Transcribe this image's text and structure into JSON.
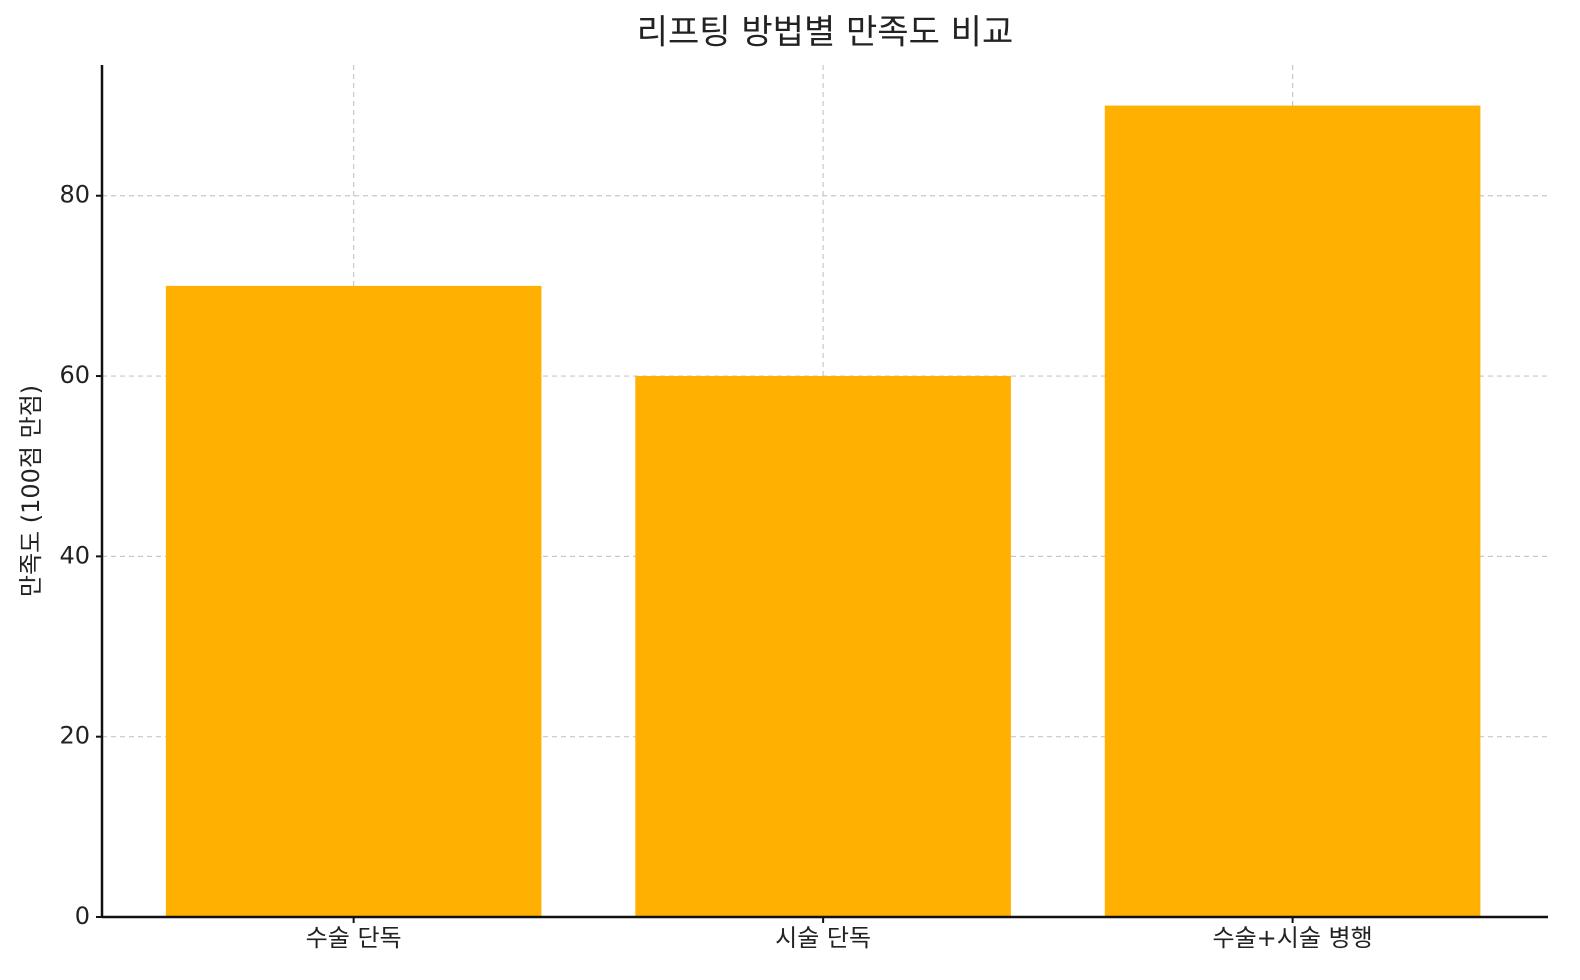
{
  "chart_data": {
    "type": "bar",
    "title": "리프팅 방법별 만족도 비교",
    "y_label": "만족도 (100점 만점)",
    "categories": [
      "수술 단독",
      "시술 단독",
      "수술+시술 병행"
    ],
    "values": [
      70,
      60,
      90
    ],
    "color": "#ffb000",
    "ylim": [
      0,
      94.5
    ],
    "yticks": [
      0,
      20,
      40,
      60,
      80
    ],
    "grid": true
  }
}
